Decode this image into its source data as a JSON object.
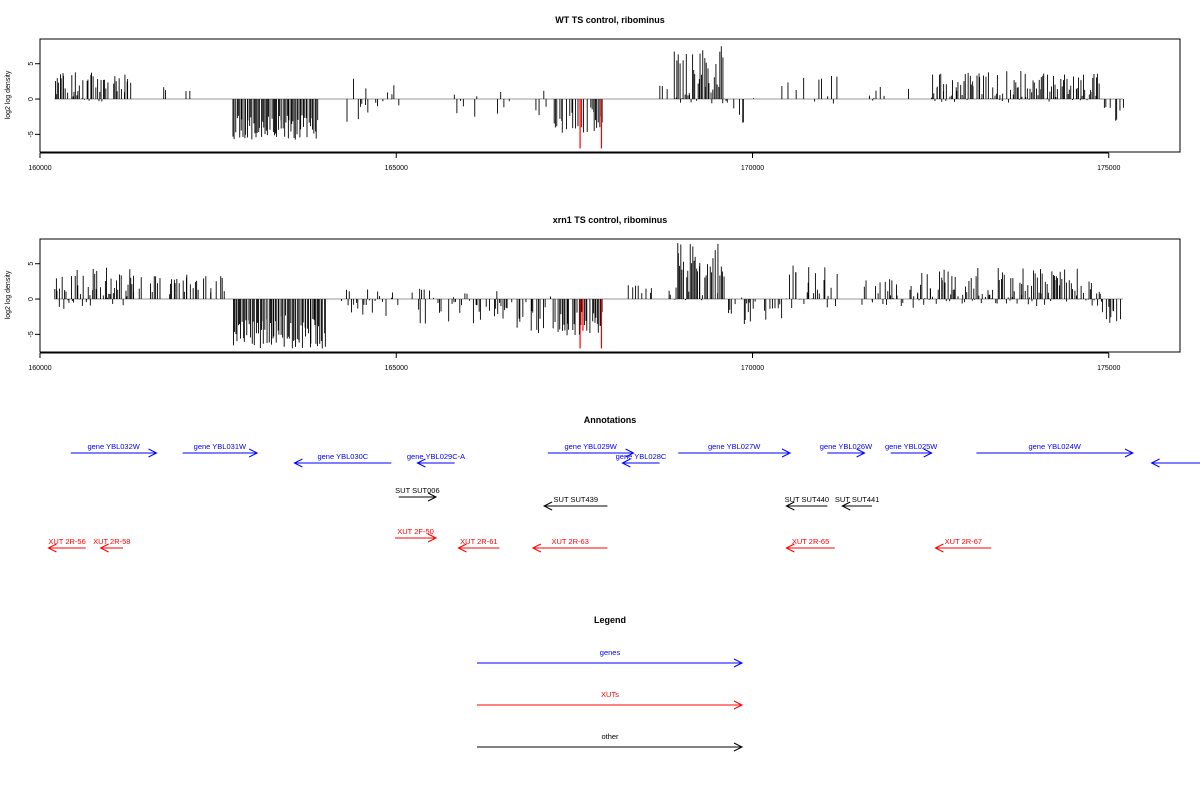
{
  "chart_data": [
    {
      "type": "bar",
      "title": "WT TS control, ribominus",
      "ylabel": "log2 log density",
      "xlim": [
        160000,
        176000
      ],
      "ylim": [
        -7.5,
        8.5
      ],
      "xticks": [
        160000,
        165000,
        170000,
        175000
      ],
      "yticks": [
        -5,
        0,
        5
      ],
      "grid": false,
      "highlight_color": "#ff0000",
      "bar_color": "#000000",
      "blocks": [
        {
          "start": 160200,
          "end": 160900,
          "min": -0.5,
          "max": 4.0,
          "density": 0.8
        },
        {
          "start": 160900,
          "end": 161300,
          "min": 0,
          "max": 3.5,
          "density": 0.4
        },
        {
          "start": 161700,
          "end": 162200,
          "min": 0,
          "max": 2.0,
          "density": 0.15
        },
        {
          "start": 162700,
          "end": 163900,
          "min": -6.0,
          "max": -1.5,
          "density": 1.0
        },
        {
          "start": 164300,
          "end": 164650,
          "min": -4.0,
          "max": 3.5,
          "density": 0.4
        },
        {
          "start": 164650,
          "end": 165200,
          "min": -2.0,
          "max": 2.0,
          "density": 0.15
        },
        {
          "start": 165800,
          "end": 167100,
          "min": -2.5,
          "max": 2.0,
          "density": 0.2
        },
        {
          "start": 167200,
          "end": 167900,
          "min": -5.0,
          "max": -0.5,
          "density": 0.6
        },
        {
          "start": 168500,
          "end": 168800,
          "min": 0,
          "max": 2.0,
          "density": 0.1
        },
        {
          "start": 168900,
          "end": 169600,
          "min": -1.0,
          "max": 7.5,
          "density": 1.0
        },
        {
          "start": 169600,
          "end": 170000,
          "min": -3.5,
          "max": 0.5,
          "density": 0.35
        },
        {
          "start": 170400,
          "end": 171200,
          "min": -1.0,
          "max": 3.5,
          "density": 0.35
        },
        {
          "start": 171500,
          "end": 172200,
          "min": -0.5,
          "max": 2.0,
          "density": 0.15
        },
        {
          "start": 172500,
          "end": 174900,
          "min": -0.5,
          "max": 4.0,
          "density": 0.85
        },
        {
          "start": 174900,
          "end": 175200,
          "min": -3.5,
          "max": 0,
          "density": 0.45
        }
      ],
      "highlights": [
        {
          "x": 167580,
          "y": -7.0
        },
        {
          "x": 167880,
          "y": -7.0
        },
        {
          "x": 167600,
          "y": -4.0
        }
      ]
    },
    {
      "type": "bar",
      "title": "xrn1 TS control, ribominus",
      "ylabel": "log2 log density",
      "xlim": [
        160000,
        176000
      ],
      "ylim": [
        -7.5,
        8.5
      ],
      "xticks": [
        160000,
        165000,
        170000,
        175000
      ],
      "yticks": [
        -5,
        0,
        5
      ],
      "grid": false,
      "highlight_color": "#ff0000",
      "bar_color": "#000000",
      "blocks": [
        {
          "start": 160200,
          "end": 161300,
          "min": -1.5,
          "max": 4.5,
          "density": 0.9
        },
        {
          "start": 161300,
          "end": 162600,
          "min": 0,
          "max": 3.5,
          "density": 0.45
        },
        {
          "start": 162700,
          "end": 164000,
          "min": -7.0,
          "max": -1.5,
          "density": 1.0
        },
        {
          "start": 164200,
          "end": 164700,
          "min": -2.5,
          "max": 1.5,
          "density": 0.5
        },
        {
          "start": 164700,
          "end": 165300,
          "min": -2.5,
          "max": 1.5,
          "density": 0.35
        },
        {
          "start": 165300,
          "end": 166500,
          "min": -3.5,
          "max": 1.5,
          "density": 0.55
        },
        {
          "start": 166500,
          "end": 167200,
          "min": -5.0,
          "max": 0.5,
          "density": 0.6
        },
        {
          "start": 167200,
          "end": 167900,
          "min": -5.5,
          "max": -1.0,
          "density": 0.85
        },
        {
          "start": 168200,
          "end": 168900,
          "min": 0,
          "max": 2.0,
          "density": 0.2
        },
        {
          "start": 168900,
          "end": 169600,
          "min": -1.0,
          "max": 8.0,
          "density": 1.0
        },
        {
          "start": 169600,
          "end": 170500,
          "min": -4.0,
          "max": 0.5,
          "density": 0.5
        },
        {
          "start": 170500,
          "end": 171200,
          "min": -1.5,
          "max": 5.0,
          "density": 0.5
        },
        {
          "start": 171500,
          "end": 172300,
          "min": -1.5,
          "max": 3.0,
          "density": 0.5
        },
        {
          "start": 172300,
          "end": 174900,
          "min": -1.0,
          "max": 4.5,
          "density": 0.9
        },
        {
          "start": 174900,
          "end": 175200,
          "min": -3.5,
          "max": 0,
          "density": 0.55
        }
      ],
      "highlights": [
        {
          "x": 167580,
          "y": -7.0
        },
        {
          "x": 167880,
          "y": -7.0
        },
        {
          "x": 167620,
          "y": -4.5
        }
      ]
    }
  ],
  "annotations": {
    "title": "Annotations",
    "items": [
      {
        "label": "gene YBL032W",
        "color": "#0000ff",
        "dir": "right",
        "x1": 160200,
        "x2": 162500,
        "row": 0
      },
      {
        "label": "gene YBL031W",
        "color": "#0000ff",
        "dir": "right",
        "x1": 163200,
        "x2": 165200,
        "row": 0
      },
      {
        "label": "gene YBL030C",
        "color": "#0000ff",
        "dir": "left",
        "x1": 166200,
        "x2": 168800,
        "row": 1
      },
      {
        "label": "gene YBL029C-A",
        "color": "#0000ff",
        "dir": "left",
        "x1": 169500,
        "x2": 170500,
        "row": 1
      },
      {
        "label": "gene YBL029W",
        "color": "#0000ff",
        "dir": "right",
        "x1": 173000,
        "x2": 175300,
        "row": 0
      },
      {
        "label": "gene YBL028C",
        "color": "#0000ff",
        "dir": "left",
        "x1": 175000,
        "x2": 176000,
        "row": 1
      },
      {
        "label": "gene YBL027W",
        "color": "#0000ff",
        "dir": "right",
        "x1": 176500,
        "x2": 179500,
        "row": 0
      },
      {
        "label": "gene YBL026W",
        "color": "#0000ff",
        "dir": "right",
        "x1": 180500,
        "x2": 181500,
        "row": 0
      },
      {
        "label": "gene YBL025W",
        "color": "#0000ff",
        "dir": "right",
        "x1": 182200,
        "x2": 183300,
        "row": 0
      },
      {
        "label": "gene YBL024W",
        "color": "#0000ff",
        "dir": "right",
        "x1": 184500,
        "x2": 188700,
        "row": 0
      },
      {
        "label": "",
        "color": "#0000ff",
        "dir": "left",
        "x1": 189200,
        "x2": 191000,
        "row": 1
      },
      {
        "label": "SUT SUT006",
        "color": "#000000",
        "dir": "right",
        "x1": 169000,
        "x2": 170000,
        "row": 2
      },
      {
        "label": "SUT SUT439",
        "color": "#000000",
        "dir": "left",
        "x1": 172900,
        "x2": 174600,
        "row": 3
      },
      {
        "label": "SUT SUT440",
        "color": "#000000",
        "dir": "left",
        "x1": 179400,
        "x2": 180500,
        "row": 3
      },
      {
        "label": "SUT SUT441",
        "color": "#000000",
        "dir": "left",
        "x1": 180900,
        "x2": 181700,
        "row": 3
      },
      {
        "label": "XUT 2R-56",
        "color": "#ff0000",
        "dir": "left",
        "x1": 159600,
        "x2": 160600,
        "row": 5
      },
      {
        "label": "XUT 2R-58",
        "color": "#ff0000",
        "dir": "left",
        "x1": 161000,
        "x2": 161600,
        "row": 5
      },
      {
        "label": "XUT 2F-50",
        "color": "#ff0000",
        "dir": "right",
        "x1": 168900,
        "x2": 170000,
        "row": 4
      },
      {
        "label": "XUT 2R-61",
        "color": "#ff0000",
        "dir": "left",
        "x1": 170600,
        "x2": 171700,
        "row": 5
      },
      {
        "label": "XUT 2R-63",
        "color": "#ff0000",
        "dir": "left",
        "x1": 172600,
        "x2": 174600,
        "row": 5
      },
      {
        "label": "XUT 2R-65",
        "color": "#ff0000",
        "dir": "left",
        "x1": 179400,
        "x2": 180700,
        "row": 5
      },
      {
        "label": "XUT 2R-67",
        "color": "#ff0000",
        "dir": "left",
        "x1": 183400,
        "x2": 184900,
        "row": 5
      }
    ]
  },
  "legend": {
    "title": "Legend",
    "entries": [
      {
        "label": "genes",
        "color": "#0000ff"
      },
      {
        "label": "XUTs",
        "color": "#ff0000"
      },
      {
        "label": "other",
        "color": "#000000"
      }
    ]
  }
}
